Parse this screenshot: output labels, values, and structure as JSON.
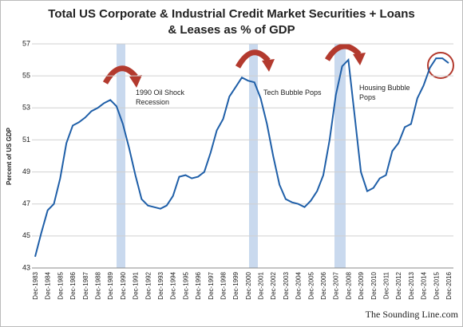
{
  "chart_data": {
    "type": "line",
    "title": [
      "Total US Corporate & Industrial Credit Market Securities + Loans",
      "& Leases as % of GDP"
    ],
    "y_label": "Percent of US GDP",
    "annotations": [
      [
        "1990 Oil Shock",
        "Recession"
      ],
      [
        "Tech Bubble Pops"
      ],
      [
        "Housing Bubble",
        "Pops"
      ]
    ],
    "source": "The Sounding Line.com",
    "categories": [
      "Dec-1983",
      null,
      "Dec-1984",
      null,
      "Dec-1985",
      null,
      "Dec-1986",
      null,
      "Dec-1987",
      null,
      "Dec-1988",
      null,
      "Dec-1989",
      null,
      "Dec-1990",
      null,
      "Dec-1991",
      null,
      "Dec-1992",
      null,
      "Dec-1993",
      null,
      "Dec-1994",
      null,
      "Dec-1995",
      null,
      "Dec-1996",
      null,
      "Dec-1997",
      null,
      "Dec-1998",
      null,
      "Dec-1999",
      null,
      "Dec-2000",
      null,
      "Dec-2001",
      null,
      "Dec-2002",
      null,
      "Dec-2003",
      null,
      "Dec-2004",
      null,
      "Dec-2005",
      null,
      "Dec-2006",
      null,
      "Dec-2007",
      null,
      "Dec-2008",
      null,
      "Dec-2009",
      null,
      "Dec-2010",
      null,
      "Dec-2011",
      null,
      "Dec-2012",
      null,
      "Dec-2013",
      null,
      "Dec-2014",
      null,
      "Dec-2015",
      null,
      "Dec-2016"
    ],
    "series": [
      {
        "color": "#1f5fa8",
        "values": [
          43.7,
          45.2,
          46.6,
          47.0,
          48.6,
          50.8,
          51.9,
          52.1,
          52.4,
          52.8,
          53.0,
          53.3,
          53.5,
          53.1,
          52.0,
          50.5,
          48.8,
          47.3,
          46.9,
          46.8,
          46.7,
          46.9,
          47.5,
          48.7,
          48.8,
          48.6,
          48.7,
          49.0,
          50.2,
          51.6,
          52.3,
          53.7,
          54.3,
          54.9,
          54.7,
          54.6,
          53.6,
          52.0,
          50.0,
          48.2,
          47.3,
          47.1,
          47.0,
          46.8,
          47.2,
          47.8,
          48.8,
          51.0,
          53.8,
          55.6,
          56.0,
          52.5,
          49.0,
          47.8,
          48.0,
          48.6,
          48.8,
          50.3,
          50.8,
          51.8,
          52.0,
          53.6,
          54.4,
          55.5,
          56.1,
          56.1,
          55.8
        ]
      }
    ],
    "ylim": [
      43,
      57
    ],
    "yticks": [
      43,
      45,
      47,
      49,
      51,
      53,
      55,
      57
    ],
    "grid": true
  }
}
